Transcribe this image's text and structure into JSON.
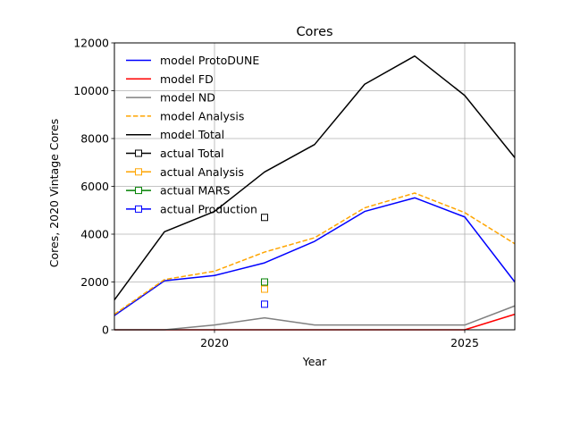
{
  "chart_data": {
    "type": "line",
    "title": "Cores",
    "xlabel": "Year",
    "ylabel": "Cores, 2020 Vintage Cores",
    "xlim": [
      2018,
      2026
    ],
    "ylim": [
      0,
      12000
    ],
    "xticks": [
      2020,
      2025
    ],
    "yticks": [
      0,
      2000,
      4000,
      6000,
      8000,
      10000,
      12000
    ],
    "grid": true,
    "legend_position": "top-left",
    "series": [
      {
        "name": "model ProtoDUNE",
        "color": "#0000ff",
        "style": "solid",
        "x": [
          2018,
          2019,
          2020,
          2021,
          2022,
          2023,
          2024,
          2025,
          2026
        ],
        "y": [
          600,
          2050,
          2270,
          2800,
          3700,
          4950,
          5520,
          4720,
          2000
        ]
      },
      {
        "name": "model FD",
        "color": "#ff0000",
        "style": "solid",
        "x": [
          2018,
          2019,
          2020,
          2021,
          2022,
          2023,
          2024,
          2025,
          2026
        ],
        "y": [
          0,
          0,
          0,
          0,
          0,
          0,
          0,
          0,
          650
        ]
      },
      {
        "name": "model ND",
        "color": "#808080",
        "style": "solid",
        "x": [
          2018,
          2019,
          2020,
          2021,
          2022,
          2023,
          2024,
          2025,
          2026
        ],
        "y": [
          0,
          0,
          200,
          500,
          200,
          200,
          200,
          200,
          1000
        ]
      },
      {
        "name": "model Analysis",
        "color": "#ffa500",
        "style": "dashed",
        "x": [
          2018,
          2019,
          2020,
          2021,
          2022,
          2023,
          2024,
          2025,
          2026
        ],
        "y": [
          650,
          2100,
          2450,
          3250,
          3850,
          5100,
          5720,
          4900,
          3600
        ]
      },
      {
        "name": "model Total",
        "color": "#000000",
        "style": "solid",
        "x": [
          2018,
          2019,
          2020,
          2021,
          2022,
          2023,
          2024,
          2025,
          2026
        ],
        "y": [
          1250,
          4100,
          4950,
          6600,
          7750,
          10270,
          11450,
          9800,
          7200
        ]
      },
      {
        "name": "actual Total",
        "color": "#000000",
        "style": "marker",
        "x": [
          2021
        ],
        "y": [
          4700
        ]
      },
      {
        "name": "actual Analysis",
        "color": "#ffa500",
        "style": "marker",
        "x": [
          2021
        ],
        "y": [
          1700
        ]
      },
      {
        "name": "actual MARS",
        "color": "#008000",
        "style": "marker",
        "x": [
          2021
        ],
        "y": [
          2000
        ]
      },
      {
        "name": "actual Production",
        "color": "#0000ff",
        "style": "marker",
        "x": [
          2021
        ],
        "y": [
          1070
        ]
      }
    ]
  }
}
